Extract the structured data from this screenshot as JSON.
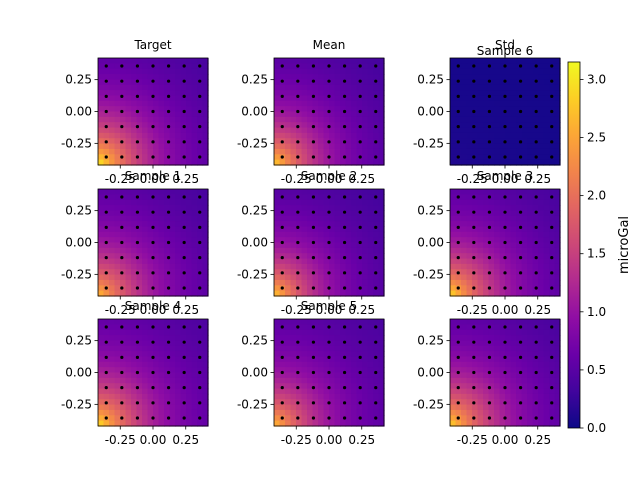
{
  "chart_data": {
    "type": "heatmap",
    "colormap": "plasma",
    "colorbar": {
      "label": "microGal",
      "range": [
        0.0,
        3.15
      ],
      "ticks": [
        "0.0",
        "0.5",
        "1.0",
        "1.5",
        "2.0",
        "2.5",
        "3.0"
      ],
      "tick_values": [
        0.0,
        0.5,
        1.0,
        1.5,
        2.0,
        2.5,
        3.0
      ]
    },
    "x_range": [
      -0.42,
      0.42
    ],
    "y_range": [
      -0.42,
      0.42
    ],
    "xticks": [
      "-0.25",
      "0.00",
      "0.25"
    ],
    "xtick_values": [
      -0.25,
      0.0,
      0.25
    ],
    "yticks": [
      "0.25",
      "0.00",
      "-0.25"
    ],
    "ytick_values": [
      0.25,
      0.0,
      -0.25
    ],
    "sensor_points": {
      "x": [
        -0.357,
        -0.238,
        -0.119,
        0.0,
        0.119,
        0.238,
        0.357
      ],
      "y": [
        0.357,
        0.238,
        0.119,
        0.0,
        -0.119,
        -0.238,
        -0.357
      ]
    },
    "panels": [
      {
        "title": "Target",
        "peak": 3.1,
        "decay": 2.7,
        "floor": 0.25
      },
      {
        "title": "Mean",
        "peak": 2.85,
        "decay": 2.8,
        "floor": 0.25
      },
      {
        "title": "Std",
        "overlay_title": "Sample 6",
        "peak": 0.12,
        "decay": 2.0,
        "floor": 0.04
      },
      {
        "title": "Sample 1",
        "peak": 2.7,
        "decay": 2.6,
        "floor": 0.25
      },
      {
        "title": "Sample 2",
        "peak": 2.8,
        "decay": 2.9,
        "floor": 0.25
      },
      {
        "title": "Sample 3",
        "peak": 2.95,
        "decay": 2.7,
        "floor": 0.25
      },
      {
        "title": "Sample 4",
        "peak": 3.0,
        "decay": 2.7,
        "floor": 0.3
      },
      {
        "title": "Sample 5",
        "peak": 2.7,
        "decay": 2.8,
        "floor": 0.3
      },
      {
        "title": "",
        "peak": 2.9,
        "decay": 2.6,
        "floor": 0.25
      }
    ]
  }
}
